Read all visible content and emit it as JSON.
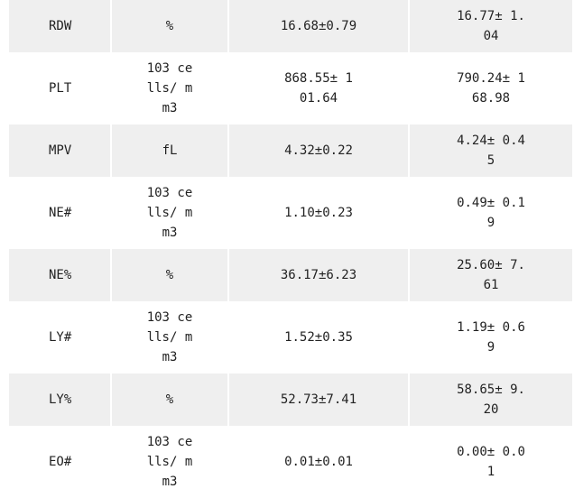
{
  "table": {
    "rows": [
      {
        "parameter": "RDW",
        "unit": "%",
        "group_a": "16.68±0.79",
        "group_b": "16.77± 1.04"
      },
      {
        "parameter": "PLT",
        "unit": "103 cells/ mm3",
        "group_a": "868.55± 101.64",
        "group_b": "790.24± 168.98"
      },
      {
        "parameter": "MPV",
        "unit": "fL",
        "group_a": "4.32±0.22",
        "group_b": "4.24± 0.45"
      },
      {
        "parameter": "NE#",
        "unit": "103 cells/ mm3",
        "group_a": "1.10±0.23",
        "group_b": "0.49± 0.19"
      },
      {
        "parameter": "NE%",
        "unit": "%",
        "group_a": "36.17±6.23",
        "group_b": "25.60± 7.61"
      },
      {
        "parameter": "LY#",
        "unit": "103 cells/ mm3",
        "group_a": "1.52±0.35",
        "group_b": "1.19± 0.69"
      },
      {
        "parameter": "LY%",
        "unit": "%",
        "group_a": "52.73±7.41",
        "group_b": "58.65± 9.20"
      },
      {
        "parameter": "EO#",
        "unit": "103 cells/ mm3",
        "group_a": "0.01±0.01",
        "group_b": "0.00± 0.01"
      }
    ]
  }
}
